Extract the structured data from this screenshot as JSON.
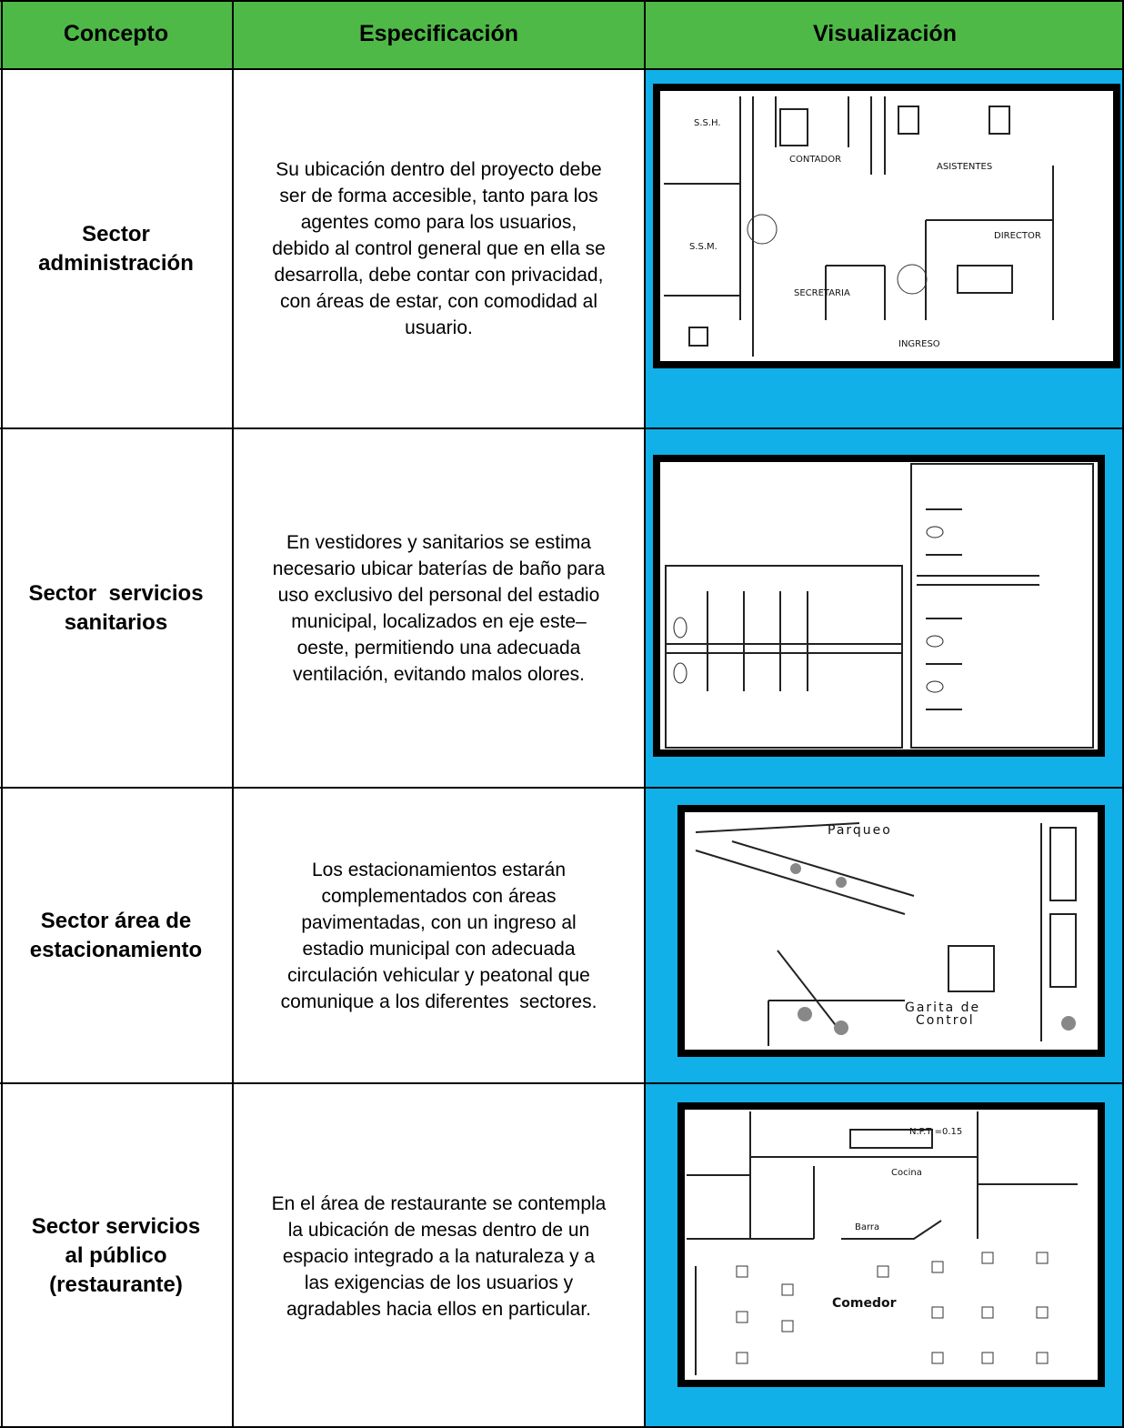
{
  "header": {
    "columns": [
      "Concepto",
      "Especificación",
      "Visualización"
    ]
  },
  "rows": [
    {
      "concept": [
        "Sector",
        "administración"
      ],
      "specification": [
        "Su ubicación dentro del proyecto debe",
        "ser de forma accesible, tanto para los",
        "agentes como para los usuarios,",
        "debido al control general que en ella se",
        "desarrolla, debe contar con privacidad,",
        "con áreas de estar, con comodidad al",
        "usuario."
      ],
      "visualization": {
        "labels": [
          "S.S.H.",
          "CONTADOR",
          "ASISTENTES",
          "S.S.M.",
          "DIRECTOR",
          "SECRETARIA",
          "INGRESO"
        ]
      }
    },
    {
      "concept": [
        "Sector  servicios",
        "sanitarios"
      ],
      "specification": [
        "En vestidores y sanitarios se estima",
        "necesario ubicar baterías de baño para",
        "uso exclusivo del personal del estadio",
        "municipal, localizados en eje este–",
        "oeste, permitiendo una adecuada",
        "ventilación, evitando malos olores."
      ]
    },
    {
      "concept": [
        "Sector área de",
        "estacionamiento"
      ],
      "specification": [
        "Los estacionamientos estarán",
        "complementados con áreas",
        "pavimentadas, con un ingreso al",
        "estadio municipal con adecuada",
        "circulación vehicular y peatonal que",
        "comunique a los diferentes  sectores."
      ],
      "visualization": {
        "labels": [
          "Parqueo",
          "Garita de",
          "Control"
        ]
      }
    },
    {
      "concept": [
        "Sector servicios",
        "al público",
        "(restaurante)"
      ],
      "specification": [
        "En el área de restaurante se contempla",
        "la ubicación de mesas dentro de un",
        "espacio integrado a la naturaleza y a",
        "las exigencias de los usuarios y",
        "agradables hacia ellos en particular."
      ],
      "visualization": {
        "labels": [
          "Comedor",
          "Cocina",
          "Barra",
          "N.P.T =0.15"
        ]
      }
    }
  ]
}
